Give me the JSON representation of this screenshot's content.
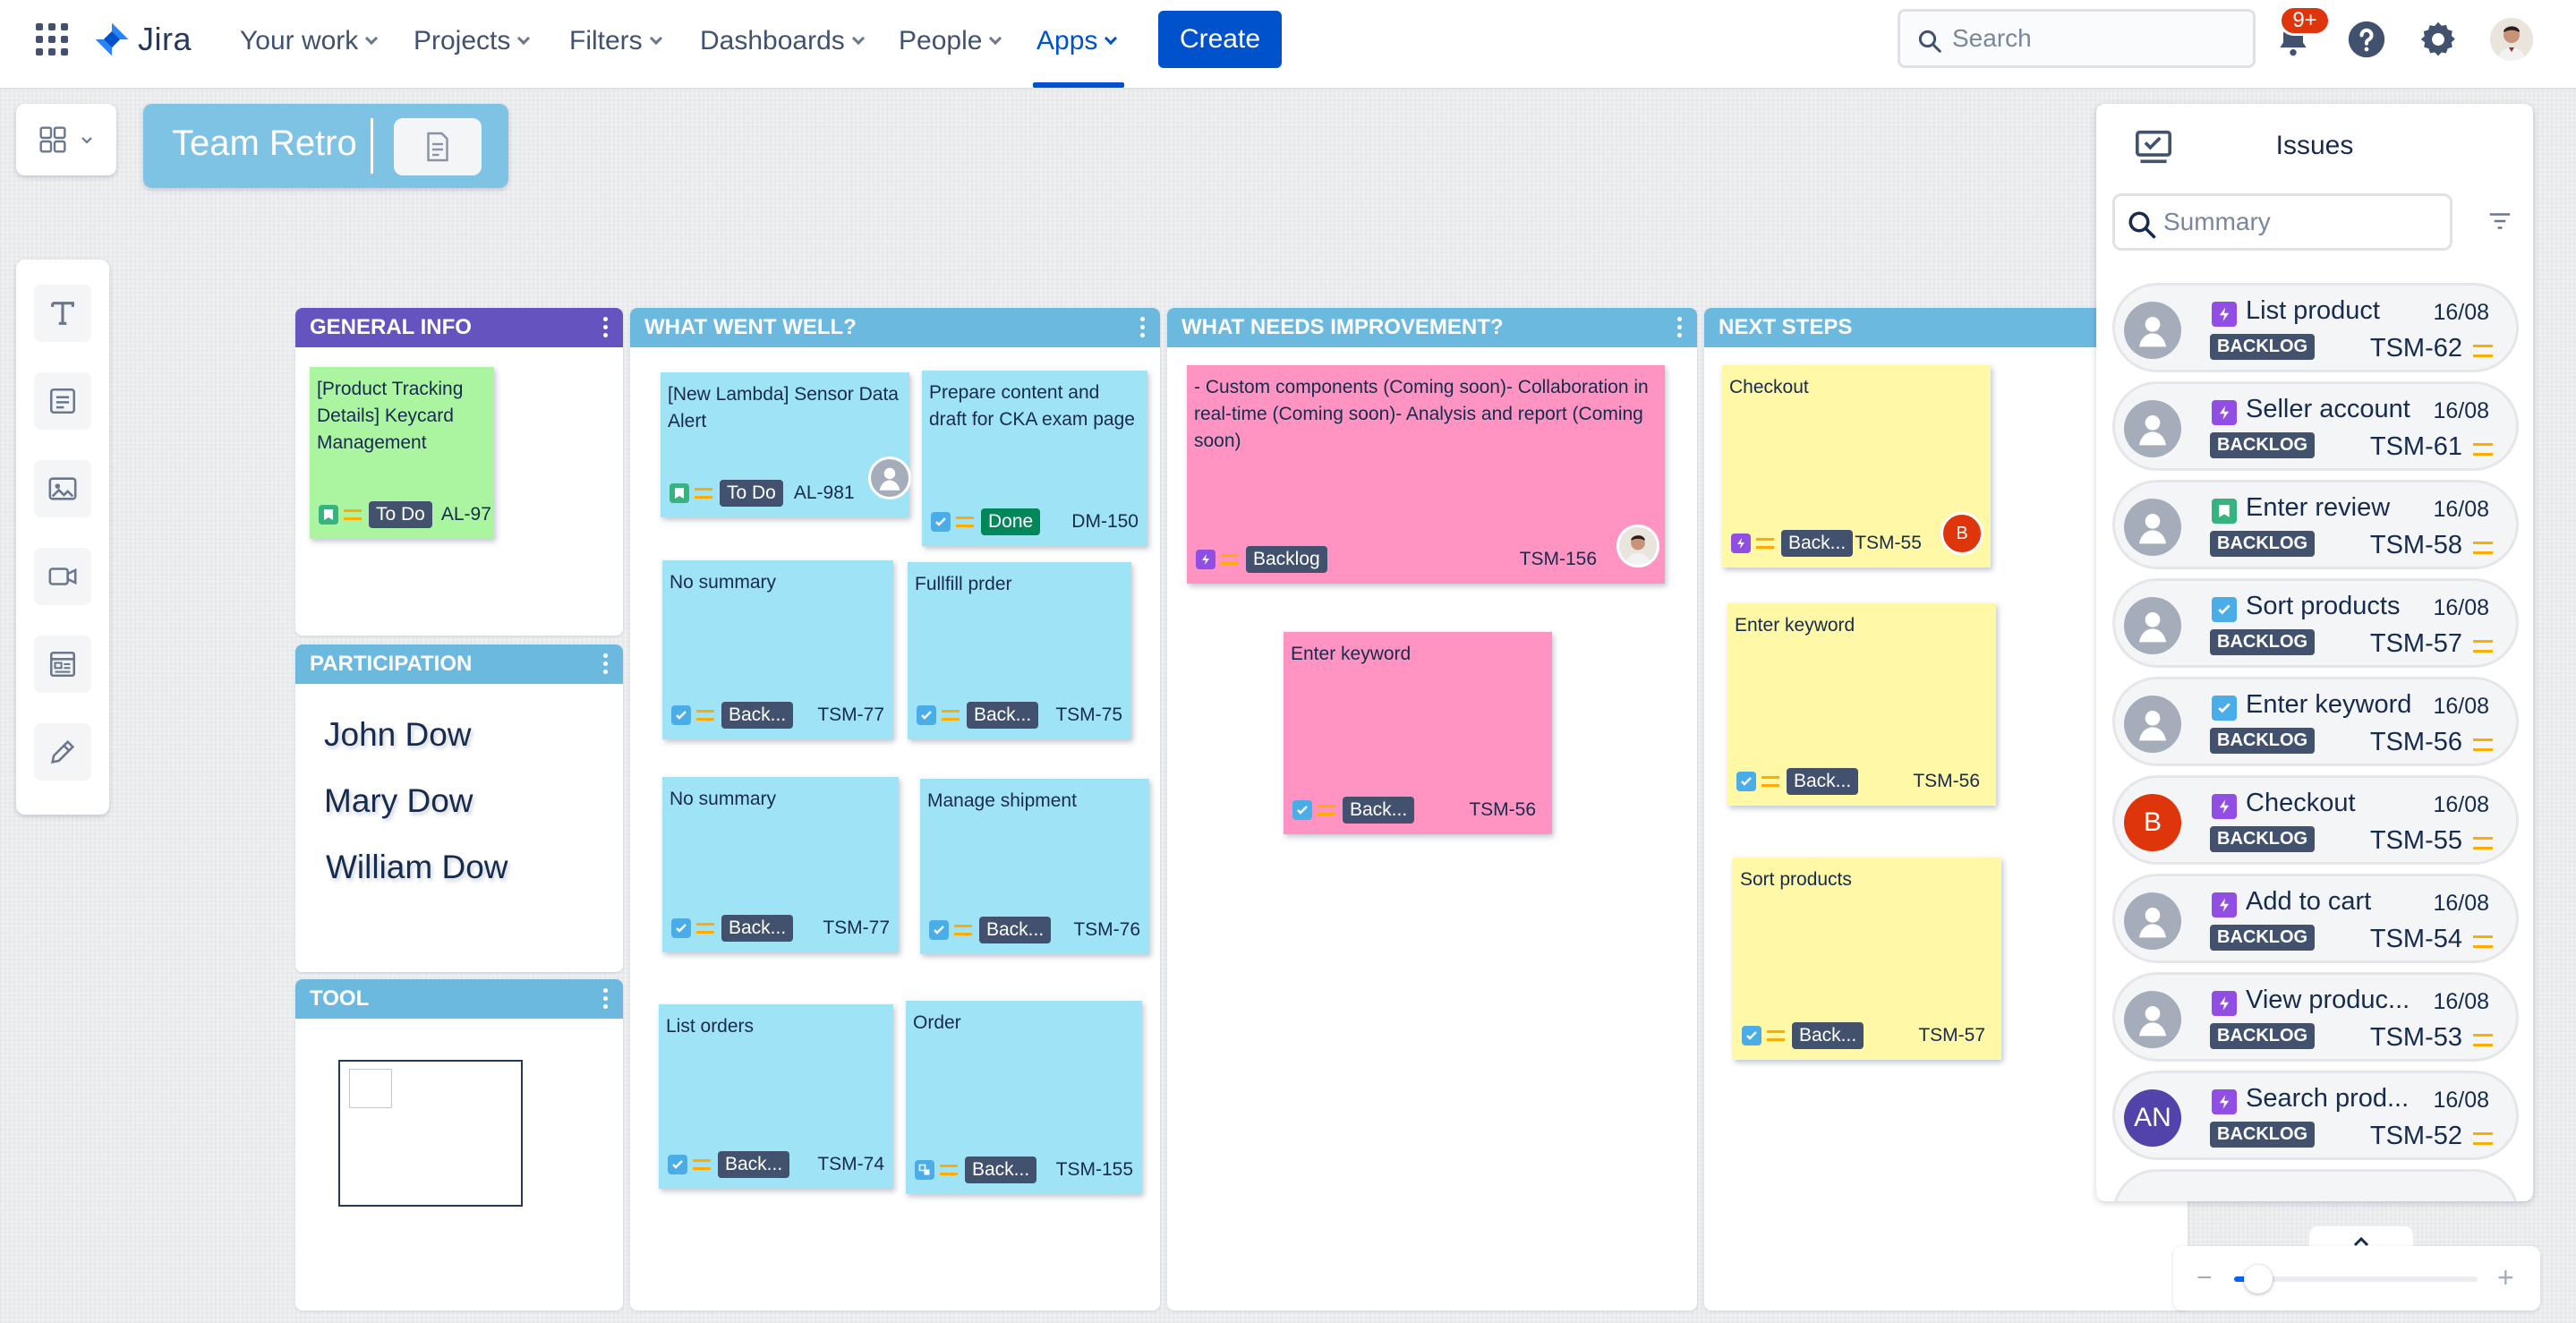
{
  "app": {
    "name": "Jira"
  },
  "nav": {
    "items": [
      "Your work",
      "Projects",
      "Filters",
      "Dashboards",
      "People",
      "Apps"
    ],
    "active": "Apps",
    "create_label": "Create",
    "search_placeholder": "Search",
    "notification_count": "9+"
  },
  "board": {
    "title": "Team Retro"
  },
  "toolbar": {
    "tools": [
      "text-tool",
      "note-tool",
      "image-tool",
      "video-tool",
      "template-tool",
      "pen-tool"
    ]
  },
  "columns": {
    "general": {
      "header": "GENERAL INFO",
      "color": "#6554c0",
      "notes": [
        {
          "text": "[Product Tracking Details] Keycard Management",
          "status": "To Do",
          "key": "AL-97",
          "type": "story",
          "color": "#abf5a1"
        }
      ]
    },
    "participation": {
      "header": "PARTICIPATION",
      "color": "#6cb9e0",
      "people": [
        "John Dow",
        "Mary Dow",
        "William Dow"
      ]
    },
    "tool": {
      "header": "TOOL",
      "color": "#6cb9e0"
    },
    "well": {
      "header": "WHAT WENT WELL?",
      "color": "#6cb9e0",
      "notes": [
        {
          "text": "[New Lambda] Sensor Data Alert",
          "status": "To Do",
          "key": "AL-981",
          "type": "story"
        },
        {
          "text": "Prepare content and draft for CKA exam page",
          "status": "Done",
          "key": "DM-150",
          "type": "task"
        },
        {
          "text": "No summary",
          "status": "Back...",
          "key": "TSM-77",
          "type": "task"
        },
        {
          "text": "Fullfill prder",
          "status": "Back...",
          "key": "TSM-75",
          "type": "task"
        },
        {
          "text": "No summary",
          "status": "Back...",
          "key": "TSM-77",
          "type": "task"
        },
        {
          "text": "Manage shipment",
          "status": "Back...",
          "key": "TSM-76",
          "type": "task"
        },
        {
          "text": "List orders",
          "status": "Back...",
          "key": "TSM-74",
          "type": "task"
        },
        {
          "text": "Order",
          "status": "Back...",
          "key": "TSM-155",
          "type": "subtask"
        }
      ]
    },
    "improve": {
      "header": "WHAT NEEDS IMPROVEMENT?",
      "color": "#6cb9e0",
      "notes": [
        {
          "text": "- Custom components (Coming soon)- Collaboration in real-time (Coming soon)- Analysis and report (Coming soon)",
          "status": "Backlog",
          "key": "TSM-156",
          "type": "epic"
        },
        {
          "text": "Enter keyword",
          "status": "Back...",
          "key": "TSM-56",
          "type": "task"
        }
      ]
    },
    "next": {
      "header": "NEXT STEPS",
      "color": "#6cb9e0",
      "notes": [
        {
          "text": "Checkout",
          "status": "Back...",
          "key": "TSM-55",
          "type": "epic",
          "assignee": "B"
        },
        {
          "text": "Enter keyword",
          "status": "Back...",
          "key": "TSM-56",
          "type": "task"
        },
        {
          "text": "Sort products",
          "status": "Back...",
          "key": "TSM-57",
          "type": "task"
        }
      ]
    }
  },
  "issues_panel": {
    "title": "Issues",
    "search_placeholder": "Summary",
    "items": [
      {
        "summary": "List product",
        "date": "16/08",
        "badge": "BACKLOG",
        "key": "TSM-62",
        "type": "epic",
        "avatar": ""
      },
      {
        "summary": "Seller account",
        "date": "16/08",
        "badge": "BACKLOG",
        "key": "TSM-61",
        "type": "epic",
        "avatar": ""
      },
      {
        "summary": "Enter review",
        "date": "16/08",
        "badge": "BACKLOG",
        "key": "TSM-58",
        "type": "story",
        "avatar": ""
      },
      {
        "summary": "Sort products",
        "date": "16/08",
        "badge": "BACKLOG",
        "key": "TSM-57",
        "type": "task",
        "avatar": ""
      },
      {
        "summary": "Enter keyword",
        "date": "16/08",
        "badge": "BACKLOG",
        "key": "TSM-56",
        "type": "task",
        "avatar": ""
      },
      {
        "summary": "Checkout",
        "date": "16/08",
        "badge": "BACKLOG",
        "key": "TSM-55",
        "type": "epic",
        "avatar": "B"
      },
      {
        "summary": "Add to cart",
        "date": "16/08",
        "badge": "BACKLOG",
        "key": "TSM-54",
        "type": "epic",
        "avatar": ""
      },
      {
        "summary": "View produc...",
        "date": "16/08",
        "badge": "BACKLOG",
        "key": "TSM-53",
        "type": "epic",
        "avatar": ""
      },
      {
        "summary": "Search prod...",
        "date": "16/08",
        "badge": "BACKLOG",
        "key": "TSM-52",
        "type": "epic",
        "avatar": "AN"
      }
    ]
  },
  "zoom": {
    "level": 0.1
  },
  "colors": {
    "brand": "#0052cc",
    "note_blue": "#9fe3f7",
    "note_pink": "#ff94c2",
    "note_yellow": "#fff8a6",
    "note_green": "#abf5a1"
  }
}
